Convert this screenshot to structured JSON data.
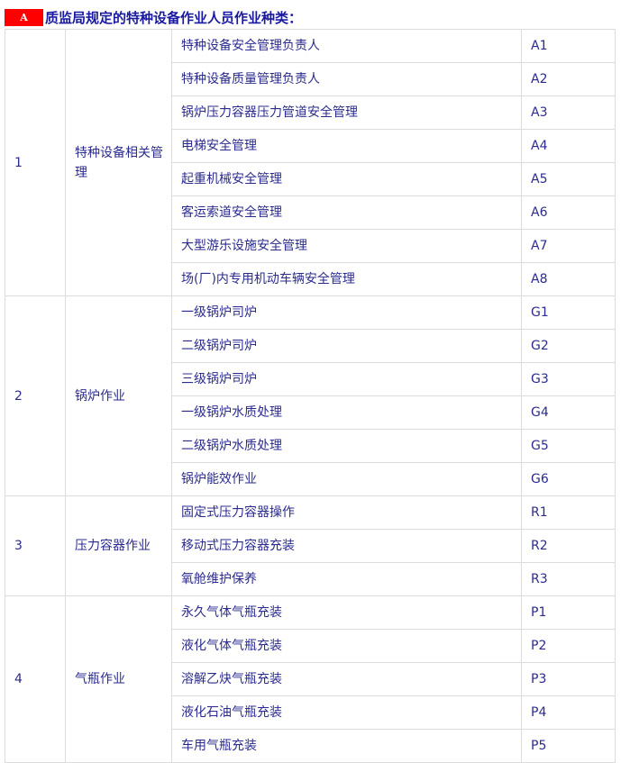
{
  "header": {
    "badge": "A",
    "title": "质监局规定的特种设备作业人员作业种类："
  },
  "groups": [
    {
      "no": "1",
      "category": "特种设备相关管理",
      "items": [
        [
          "特种设备安全管理负责人",
          "A1"
        ],
        [
          "特种设备质量管理负责人",
          "A2"
        ],
        [
          "锅炉压力容器压力管道安全管理",
          "A3"
        ],
        [
          "电梯安全管理",
          "A4"
        ],
        [
          "起重机械安全管理",
          "A5"
        ],
        [
          "客运索道安全管理",
          "A6"
        ],
        [
          "大型游乐设施安全管理",
          "A7"
        ],
        [
          "场(厂)内专用机动车辆安全管理",
          "A8"
        ]
      ]
    },
    {
      "no": "2",
      "category": "锅炉作业",
      "items": [
        [
          "一级锅炉司炉",
          "G1"
        ],
        [
          "二级锅炉司炉",
          "G2"
        ],
        [
          "三级锅炉司炉",
          "G3"
        ],
        [
          "一级锅炉水质处理",
          "G4"
        ],
        [
          "二级锅炉水质处理",
          "G5"
        ],
        [
          "锅炉能效作业",
          "G6"
        ]
      ]
    },
    {
      "no": "3",
      "category": "压力容器作业",
      "items": [
        [
          "固定式压力容器操作",
          "R1"
        ],
        [
          "移动式压力容器充装",
          "R2"
        ],
        [
          "氧舱维护保养",
          "R3"
        ]
      ]
    },
    {
      "no": "4",
      "category": "气瓶作业",
      "items": [
        [
          "永久气体气瓶充装",
          "P1"
        ],
        [
          "液化气体气瓶充装",
          "P2"
        ],
        [
          "溶解乙炔气瓶充装",
          "P3"
        ],
        [
          "液化石油气瓶充装",
          "P4"
        ],
        [
          "车用气瓶充装",
          "P5"
        ]
      ]
    }
  ]
}
